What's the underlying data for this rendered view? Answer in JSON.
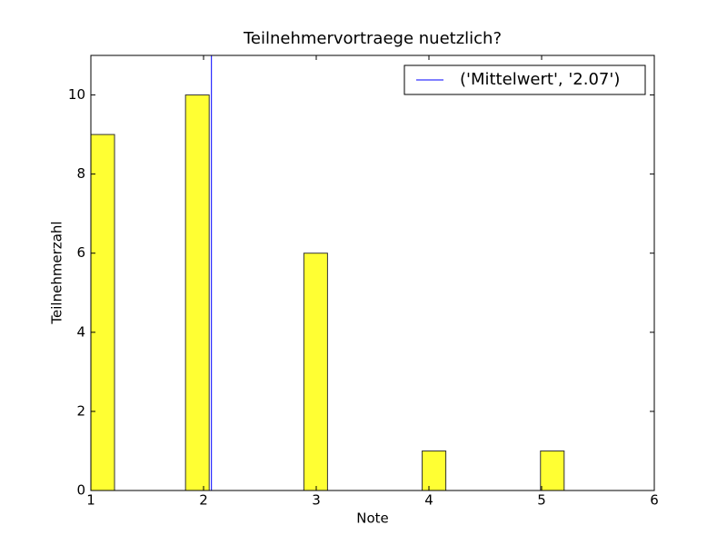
{
  "chart_data": {
    "type": "histogram",
    "title": "Teilnehmervortraege nuetzlich?",
    "x_label": "Note",
    "y_label": "Teilnehmerzahl",
    "bins": [
      1,
      1.21,
      1.42,
      1.63,
      1.84,
      2.05,
      2.26,
      2.47,
      2.68,
      2.89,
      3.1,
      3.31,
      3.52,
      3.73,
      3.94,
      4.15,
      4.36,
      4.57,
      4.78,
      4.99,
      5.2
    ],
    "values": [
      9,
      0,
      0,
      0,
      10,
      0,
      0,
      0,
      0,
      6,
      0,
      0,
      0,
      0,
      1,
      0,
      0,
      0,
      0,
      1
    ],
    "color": "#ffff33",
    "mean_line": {
      "value": 2.07,
      "label": "('Mittelwert', '2.07')",
      "color": "#0000ff"
    },
    "xlim": [
      1,
      6
    ],
    "xticks": [
      1,
      2,
      3,
      4,
      5,
      6
    ],
    "ylim": [
      0,
      11
    ],
    "yticks": [
      0,
      2,
      4,
      6,
      8,
      10
    ],
    "legend": "upper right"
  }
}
